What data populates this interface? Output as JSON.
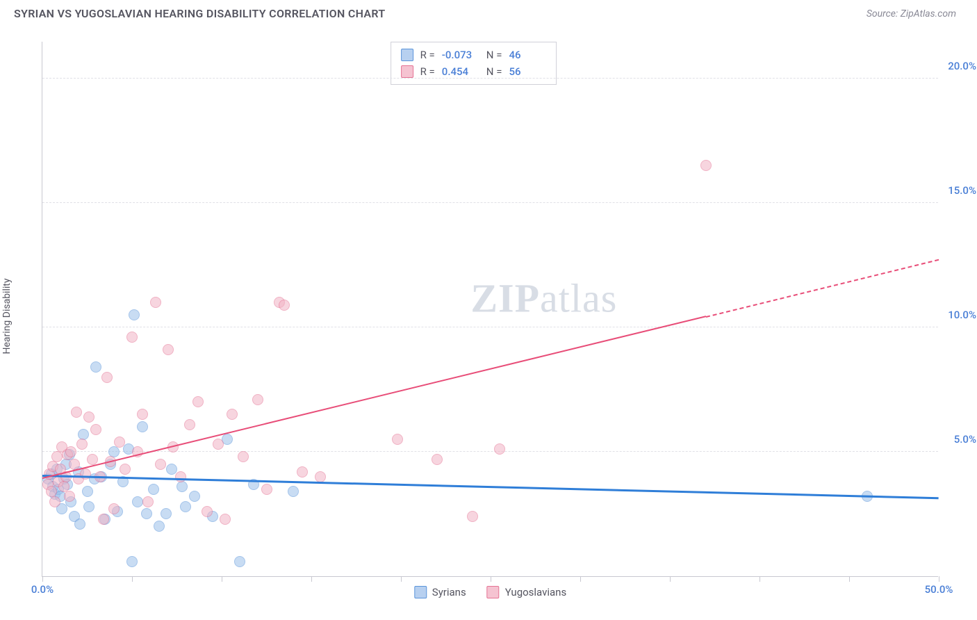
{
  "title": "SYRIAN VS YUGOSLAVIAN HEARING DISABILITY CORRELATION CHART",
  "source": "Source: ZipAtlas.com",
  "ylabel": "Hearing Disability",
  "watermark": {
    "bold": "ZIP",
    "rest": "atlas"
  },
  "chart": {
    "type": "scatter",
    "background_color": "#ffffff",
    "grid_color": "#e0e0e6",
    "axis_color": "#c8c8d0",
    "tick_label_color": "#4a7fd6",
    "text_color": "#555560",
    "xlim": [
      0,
      50
    ],
    "ylim": [
      0,
      21.5
    ],
    "xtick_positions": [
      0,
      5,
      10,
      15,
      20,
      25,
      30,
      35,
      40,
      45,
      50
    ],
    "xtick_labels": {
      "0": "0.0%",
      "50": "50.0%"
    },
    "yticks": [
      {
        "v": 5,
        "label": "5.0%"
      },
      {
        "v": 10,
        "label": "10.0%"
      },
      {
        "v": 15,
        "label": "15.0%"
      },
      {
        "v": 20,
        "label": "20.0%"
      }
    ],
    "dot_radius": 8,
    "dot_opacity": 0.55,
    "series": [
      {
        "name": "Syrians",
        "fill": "#9cc0ea",
        "stroke": "#5a94da",
        "swatch_fill": "#b7d0f0",
        "swatch_stroke": "#5a94da",
        "points": [
          [
            0.3,
            3.9
          ],
          [
            0.5,
            4.1
          ],
          [
            0.6,
            3.6
          ],
          [
            0.7,
            3.3
          ],
          [
            0.8,
            4.3
          ],
          [
            0.9,
            3.5
          ],
          [
            1.0,
            3.2
          ],
          [
            1.1,
            2.7
          ],
          [
            1.2,
            3.9
          ],
          [
            1.3,
            4.5
          ],
          [
            1.4,
            3.7
          ],
          [
            1.5,
            4.9
          ],
          [
            1.6,
            3.0
          ],
          [
            1.8,
            2.4
          ],
          [
            2.0,
            4.2
          ],
          [
            2.1,
            2.1
          ],
          [
            2.3,
            5.7
          ],
          [
            2.5,
            3.4
          ],
          [
            2.6,
            2.8
          ],
          [
            2.9,
            3.9
          ],
          [
            3.0,
            8.4
          ],
          [
            3.3,
            4.0
          ],
          [
            3.5,
            2.3
          ],
          [
            3.8,
            4.5
          ],
          [
            4.0,
            5.0
          ],
          [
            4.2,
            2.6
          ],
          [
            4.5,
            3.8
          ],
          [
            4.8,
            5.1
          ],
          [
            5.0,
            0.6
          ],
          [
            5.1,
            10.5
          ],
          [
            5.3,
            3.0
          ],
          [
            5.6,
            6.0
          ],
          [
            5.8,
            2.5
          ],
          [
            6.2,
            3.5
          ],
          [
            6.5,
            2.0
          ],
          [
            6.9,
            2.5
          ],
          [
            7.2,
            4.3
          ],
          [
            7.8,
            3.6
          ],
          [
            8.0,
            2.8
          ],
          [
            8.5,
            3.2
          ],
          [
            9.5,
            2.4
          ],
          [
            10.3,
            5.5
          ],
          [
            11.0,
            0.6
          ],
          [
            11.8,
            3.7
          ],
          [
            14.0,
            3.4
          ],
          [
            46.0,
            3.2
          ]
        ],
        "trend": {
          "x1": 0,
          "y1": 4.0,
          "x2": 50,
          "y2": 3.1,
          "color": "#2f7ed8",
          "width": 2.5
        },
        "R": "-0.073",
        "N": "46"
      },
      {
        "name": "Yugoslavians",
        "fill": "#f2b4c5",
        "stroke": "#e57394",
        "swatch_fill": "#f5c3d1",
        "swatch_stroke": "#e57394",
        "points": [
          [
            0.3,
            3.7
          ],
          [
            0.4,
            4.1
          ],
          [
            0.5,
            3.4
          ],
          [
            0.6,
            4.4
          ],
          [
            0.7,
            3.0
          ],
          [
            0.8,
            4.8
          ],
          [
            0.9,
            3.8
          ],
          [
            1.0,
            4.3
          ],
          [
            1.1,
            5.2
          ],
          [
            1.2,
            3.6
          ],
          [
            1.3,
            4.0
          ],
          [
            1.4,
            4.9
          ],
          [
            1.5,
            3.2
          ],
          [
            1.6,
            5.0
          ],
          [
            1.8,
            4.5
          ],
          [
            1.9,
            6.6
          ],
          [
            2.0,
            3.9
          ],
          [
            2.2,
            5.3
          ],
          [
            2.4,
            4.1
          ],
          [
            2.6,
            6.4
          ],
          [
            2.8,
            4.7
          ],
          [
            3.0,
            5.9
          ],
          [
            3.2,
            4.0
          ],
          [
            3.4,
            2.3
          ],
          [
            3.6,
            8.0
          ],
          [
            3.8,
            4.6
          ],
          [
            4.0,
            2.7
          ],
          [
            4.3,
            5.4
          ],
          [
            4.6,
            4.3
          ],
          [
            5.0,
            9.6
          ],
          [
            5.3,
            5.0
          ],
          [
            5.6,
            6.5
          ],
          [
            5.9,
            3.0
          ],
          [
            6.3,
            11.0
          ],
          [
            6.6,
            4.5
          ],
          [
            7.0,
            9.1
          ],
          [
            7.3,
            5.2
          ],
          [
            7.7,
            4.0
          ],
          [
            8.2,
            6.1
          ],
          [
            8.7,
            7.0
          ],
          [
            9.2,
            2.6
          ],
          [
            9.8,
            5.3
          ],
          [
            10.2,
            2.3
          ],
          [
            10.6,
            6.5
          ],
          [
            11.2,
            4.8
          ],
          [
            12.0,
            7.1
          ],
          [
            12.5,
            3.5
          ],
          [
            13.2,
            11.0
          ],
          [
            13.5,
            10.9
          ],
          [
            14.5,
            4.2
          ],
          [
            15.5,
            4.0
          ],
          [
            19.8,
            5.5
          ],
          [
            22.0,
            4.7
          ],
          [
            24.0,
            2.4
          ],
          [
            25.5,
            5.1
          ],
          [
            37.0,
            16.5
          ]
        ],
        "trend": {
          "x1": 0,
          "y1": 3.9,
          "x2": 37,
          "y2": 10.4,
          "dash_to_x": 50,
          "dash_to_y": 12.7,
          "color": "#e84d78",
          "width": 2
        },
        "R": "0.454",
        "N": "56"
      }
    ]
  },
  "legend": {
    "items": [
      {
        "label": "Syrians",
        "fill": "#b7d0f0",
        "stroke": "#5a94da"
      },
      {
        "label": "Yugoslavians",
        "fill": "#f5c3d1",
        "stroke": "#e57394"
      }
    ]
  }
}
